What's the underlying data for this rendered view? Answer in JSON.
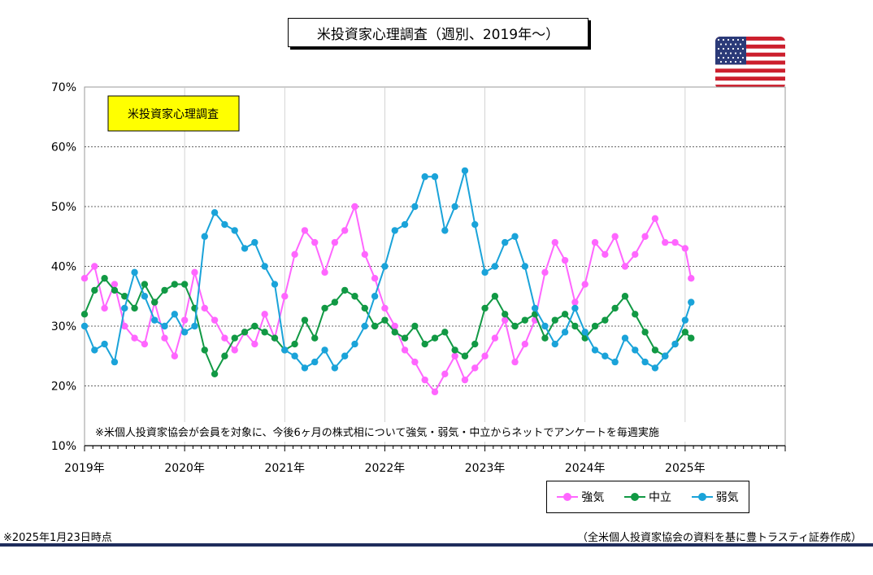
{
  "header": {
    "title": "米投資家心理調査（週別、2019年～）"
  },
  "flag": {
    "name": "us-flag-icon"
  },
  "footer": {
    "as_of": "※2025年1月23日時点",
    "source": "（全米個人投資家協会の資料を基に豊トラスティ証券作成）"
  },
  "chart_data": {
    "type": "line",
    "title": "米投資家心理調査（週別、2019年～）",
    "inner_label": "米投資家心理調査",
    "annotation": "※米個人投資家協会が会員を対象に、今後6ヶ月の株式相について強気・弱気・中立からネットでアンケートを毎週実施",
    "xlabel": "",
    "ylabel": "",
    "ylim": [
      10,
      70
    ],
    "yticks": [
      10,
      20,
      30,
      40,
      50,
      60,
      70
    ],
    "ytick_labels": [
      "10%",
      "20%",
      "30%",
      "40%",
      "50%",
      "60%",
      "70%"
    ],
    "xlim": [
      2019,
      2026
    ],
    "xticks": [
      2019,
      2020,
      2021,
      2022,
      2023,
      2024,
      2025
    ],
    "xtick_labels": [
      "2019年",
      "2020年",
      "2021年",
      "2022年",
      "2023年",
      "2024年",
      "2025年"
    ],
    "grid": "horizontal-dashed",
    "legend_position": "bottom-right",
    "series": [
      {
        "name": "強気",
        "color": "#ff66ff",
        "x": [
          2019.0,
          2019.1,
          2019.2,
          2019.3,
          2019.4,
          2019.5,
          2019.6,
          2019.7,
          2019.8,
          2019.9,
          2020.0,
          2020.1,
          2020.2,
          2020.3,
          2020.4,
          2020.5,
          2020.6,
          2020.7,
          2020.8,
          2020.9,
          2021.0,
          2021.1,
          2021.2,
          2021.3,
          2021.4,
          2021.5,
          2021.6,
          2021.7,
          2021.8,
          2021.9,
          2022.0,
          2022.1,
          2022.2,
          2022.3,
          2022.4,
          2022.5,
          2022.6,
          2022.7,
          2022.8,
          2022.9,
          2023.0,
          2023.1,
          2023.2,
          2023.3,
          2023.4,
          2023.5,
          2023.6,
          2023.7,
          2023.8,
          2023.9,
          2024.0,
          2024.1,
          2024.2,
          2024.3,
          2024.4,
          2024.5,
          2024.6,
          2024.7,
          2024.8,
          2024.9,
          2025.0,
          2025.06
        ],
        "values": [
          38,
          40,
          33,
          37,
          30,
          28,
          27,
          34,
          28,
          25,
          31,
          39,
          33,
          31,
          28,
          26,
          29,
          27,
          32,
          28,
          35,
          42,
          46,
          44,
          39,
          44,
          46,
          50,
          42,
          38,
          33,
          30,
          26,
          24,
          21,
          19,
          22,
          25,
          21,
          23,
          25,
          28,
          31,
          24,
          27,
          31,
          39,
          44,
          41,
          34,
          37,
          44,
          42,
          45,
          40,
          42,
          45,
          48,
          44,
          44,
          43,
          38
        ]
      },
      {
        "name": "中立",
        "color": "#119944",
        "x": [
          2019.0,
          2019.1,
          2019.2,
          2019.3,
          2019.4,
          2019.5,
          2019.6,
          2019.7,
          2019.8,
          2019.9,
          2020.0,
          2020.1,
          2020.2,
          2020.3,
          2020.4,
          2020.5,
          2020.6,
          2020.7,
          2020.8,
          2020.9,
          2021.0,
          2021.1,
          2021.2,
          2021.3,
          2021.4,
          2021.5,
          2021.6,
          2021.7,
          2021.8,
          2021.9,
          2022.0,
          2022.1,
          2022.2,
          2022.3,
          2022.4,
          2022.5,
          2022.6,
          2022.7,
          2022.8,
          2022.9,
          2023.0,
          2023.1,
          2023.2,
          2023.3,
          2023.4,
          2023.5,
          2023.6,
          2023.7,
          2023.8,
          2023.9,
          2024.0,
          2024.1,
          2024.2,
          2024.3,
          2024.4,
          2024.5,
          2024.6,
          2024.7,
          2024.8,
          2024.9,
          2025.0,
          2025.06
        ],
        "values": [
          32,
          36,
          38,
          36,
          35,
          33,
          37,
          34,
          36,
          37,
          37,
          33,
          26,
          22,
          25,
          28,
          29,
          30,
          29,
          28,
          26,
          27,
          31,
          28,
          33,
          34,
          36,
          35,
          33,
          30,
          31,
          29,
          28,
          30,
          27,
          28,
          29,
          26,
          25,
          27,
          33,
          35,
          32,
          30,
          31,
          32,
          28,
          31,
          32,
          30,
          28,
          30,
          31,
          33,
          35,
          32,
          29,
          26,
          25,
          27,
          29,
          28
        ]
      },
      {
        "name": "弱気",
        "color": "#1aa3d9",
        "x": [
          2019.0,
          2019.1,
          2019.2,
          2019.3,
          2019.4,
          2019.5,
          2019.6,
          2019.7,
          2019.8,
          2019.9,
          2020.0,
          2020.1,
          2020.2,
          2020.3,
          2020.4,
          2020.5,
          2020.6,
          2020.7,
          2020.8,
          2020.9,
          2021.0,
          2021.1,
          2021.2,
          2021.3,
          2021.4,
          2021.5,
          2021.6,
          2021.7,
          2021.8,
          2021.9,
          2022.0,
          2022.1,
          2022.2,
          2022.3,
          2022.4,
          2022.5,
          2022.6,
          2022.7,
          2022.8,
          2022.9,
          2023.0,
          2023.1,
          2023.2,
          2023.3,
          2023.4,
          2023.5,
          2023.6,
          2023.7,
          2023.8,
          2023.9,
          2024.0,
          2024.1,
          2024.2,
          2024.3,
          2024.4,
          2024.5,
          2024.6,
          2024.7,
          2024.8,
          2024.9,
          2025.0,
          2025.06
        ],
        "values": [
          30,
          26,
          27,
          24,
          33,
          39,
          35,
          31,
          30,
          32,
          29,
          30,
          45,
          49,
          47,
          46,
          43,
          44,
          40,
          37,
          26,
          25,
          23,
          24,
          26,
          23,
          25,
          27,
          30,
          35,
          40,
          46,
          47,
          50,
          55,
          55,
          46,
          50,
          56,
          47,
          39,
          40,
          44,
          45,
          40,
          33,
          30,
          27,
          29,
          33,
          29,
          26,
          25,
          24,
          28,
          26,
          24,
          23,
          25,
          27,
          31,
          34
        ]
      }
    ]
  }
}
